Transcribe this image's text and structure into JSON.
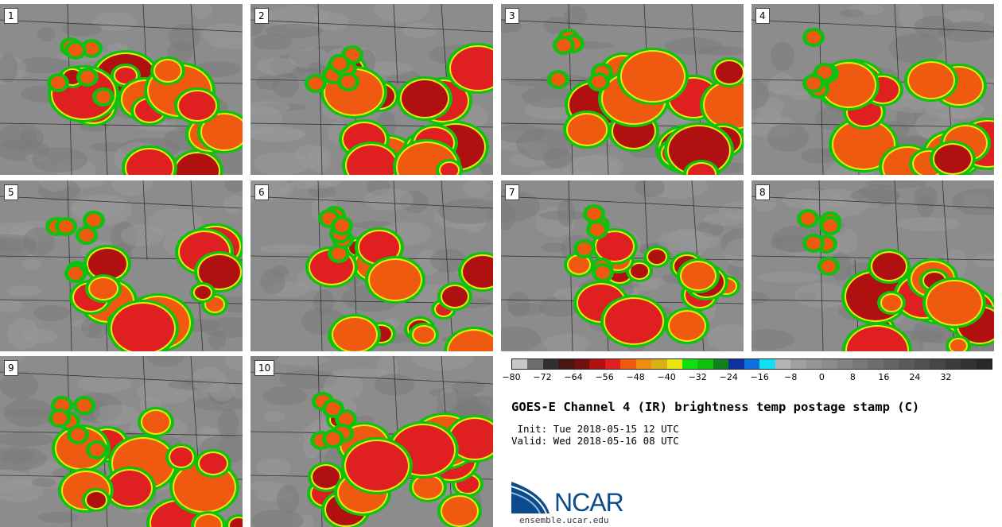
{
  "panels": [
    {
      "label": "1"
    },
    {
      "label": "2"
    },
    {
      "label": "3"
    },
    {
      "label": "4"
    },
    {
      "label": "5"
    },
    {
      "label": "6"
    },
    {
      "label": "7"
    },
    {
      "label": "8"
    },
    {
      "label": "9"
    },
    {
      "label": "10"
    }
  ],
  "colorbar": {
    "colors": [
      "#c8c8c8",
      "#6e6e6e",
      "#303030",
      "#4a1515",
      "#701010",
      "#b01010",
      "#e02020",
      "#f05a10",
      "#f08c10",
      "#d8b010",
      "#e8e810",
      "#10e010",
      "#10c010",
      "#108020",
      "#1030a0",
      "#1070e0",
      "#10e0f0",
      "#b4b4b4",
      "#a0a0a0",
      "#969696",
      "#8c8c8c",
      "#828282",
      "#787878",
      "#6e6e6e",
      "#646464",
      "#5a5a5a",
      "#505050",
      "#464646",
      "#3c3c3c",
      "#323232",
      "#282828"
    ],
    "ticks": [
      "−80",
      "−72",
      "−64",
      "−56",
      "−48",
      "−40",
      "−32",
      "−24",
      "−16",
      "−8",
      "0",
      "8",
      "16",
      "24",
      "32"
    ]
  },
  "title": "GOES-E Channel 4 (IR) brightness temp postage stamp (C)",
  "init_line": " Init: Tue 2018-05-15 12 UTC",
  "valid_line": "Valid: Wed 2018-05-16 08 UTC",
  "logo": {
    "text": "NCAR",
    "url": "ensemble.ucar.edu",
    "color": "#0b4a8c"
  }
}
